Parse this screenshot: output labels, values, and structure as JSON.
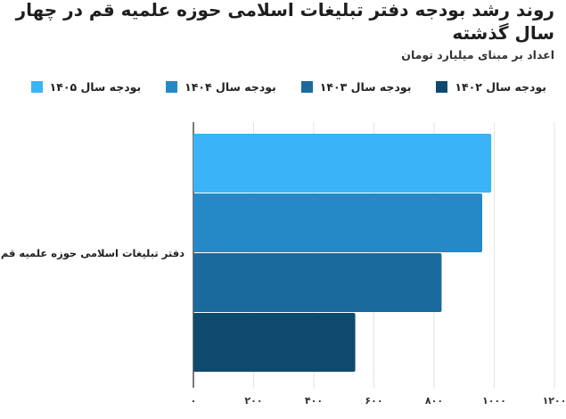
{
  "title": "روند رشد بودجه دفتر تبلیغات اسلامی حوزه علمیه قم در چهار سال گذشته",
  "subtitle": "اعداد بر مبنای میلیارد تومان",
  "chart_data": {
    "type": "bar",
    "orientation": "horizontal",
    "title": "روند رشد بودجه دفتر تبلیغات اسلامی حوزه علمیه قم در چهار سال گذشته",
    "subtitle": "اعداد بر مبنای میلیارد تومان",
    "categories": [
      "دفتر تبلیغات اسلامی حوزه علمیه قم"
    ],
    "series": [
      {
        "name": "بودجه سال ۱۴۰۵",
        "color": "#3bb3f8",
        "values": [
          990
        ]
      },
      {
        "name": "بودجه سال ۱۴۰۴",
        "color": "#2589c7",
        "values": [
          960
        ]
      },
      {
        "name": "بودجه سال ۱۴۰۳",
        "color": "#1a6a9e",
        "values": [
          825
        ]
      },
      {
        "name": "بودجه سال ۱۴۰۲",
        "color": "#0e4a6e",
        "values": [
          538
        ]
      }
    ],
    "legend_order": [
      "بودجه سال ۱۴۰۲",
      "بودجه سال ۱۴۰۳",
      "بودجه سال ۱۴۰۴",
      "بودجه سال ۱۴۰۵"
    ],
    "xlim": [
      0,
      1200
    ],
    "x_ticks": [
      0,
      200,
      400,
      600,
      800,
      1000,
      1200
    ],
    "x_tick_labels": [
      "۰",
      "۲۰۰",
      "۴۰۰",
      "۶۰۰",
      "۸۰۰",
      "۱۰۰۰",
      "۱۲۰۰"
    ],
    "grid": "vertical",
    "legend_position": "top"
  }
}
